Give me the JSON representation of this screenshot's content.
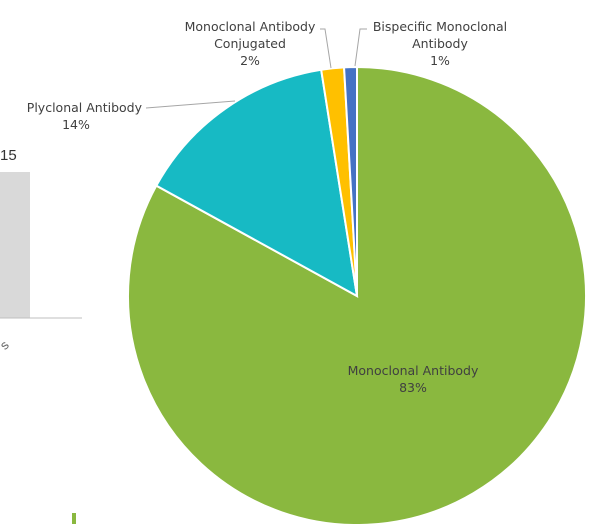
{
  "background_fragment": {
    "tick_label": "15",
    "category_label": "s"
  },
  "chart_data": {
    "type": "pie",
    "title": "",
    "legend": "none",
    "slices": [
      {
        "label_lines": [
          "Monoclonal Antibody"
        ],
        "percent_text": "83%",
        "value": 83,
        "color": "#8ab83f"
      },
      {
        "label_lines": [
          "Plyclonal Antibody"
        ],
        "percent_text": "14%",
        "value": 14.5,
        "color": "#17bac4"
      },
      {
        "label_lines": [
          "Monoclonal Antibody",
          "Conjugated"
        ],
        "percent_text": "2%",
        "value": 1.6,
        "color": "#ffc000"
      },
      {
        "label_lines": [
          "Bispecific Monoclonal",
          "Antibody"
        ],
        "percent_text": "1%",
        "value": 0.9,
        "color": "#4472c4"
      }
    ]
  }
}
